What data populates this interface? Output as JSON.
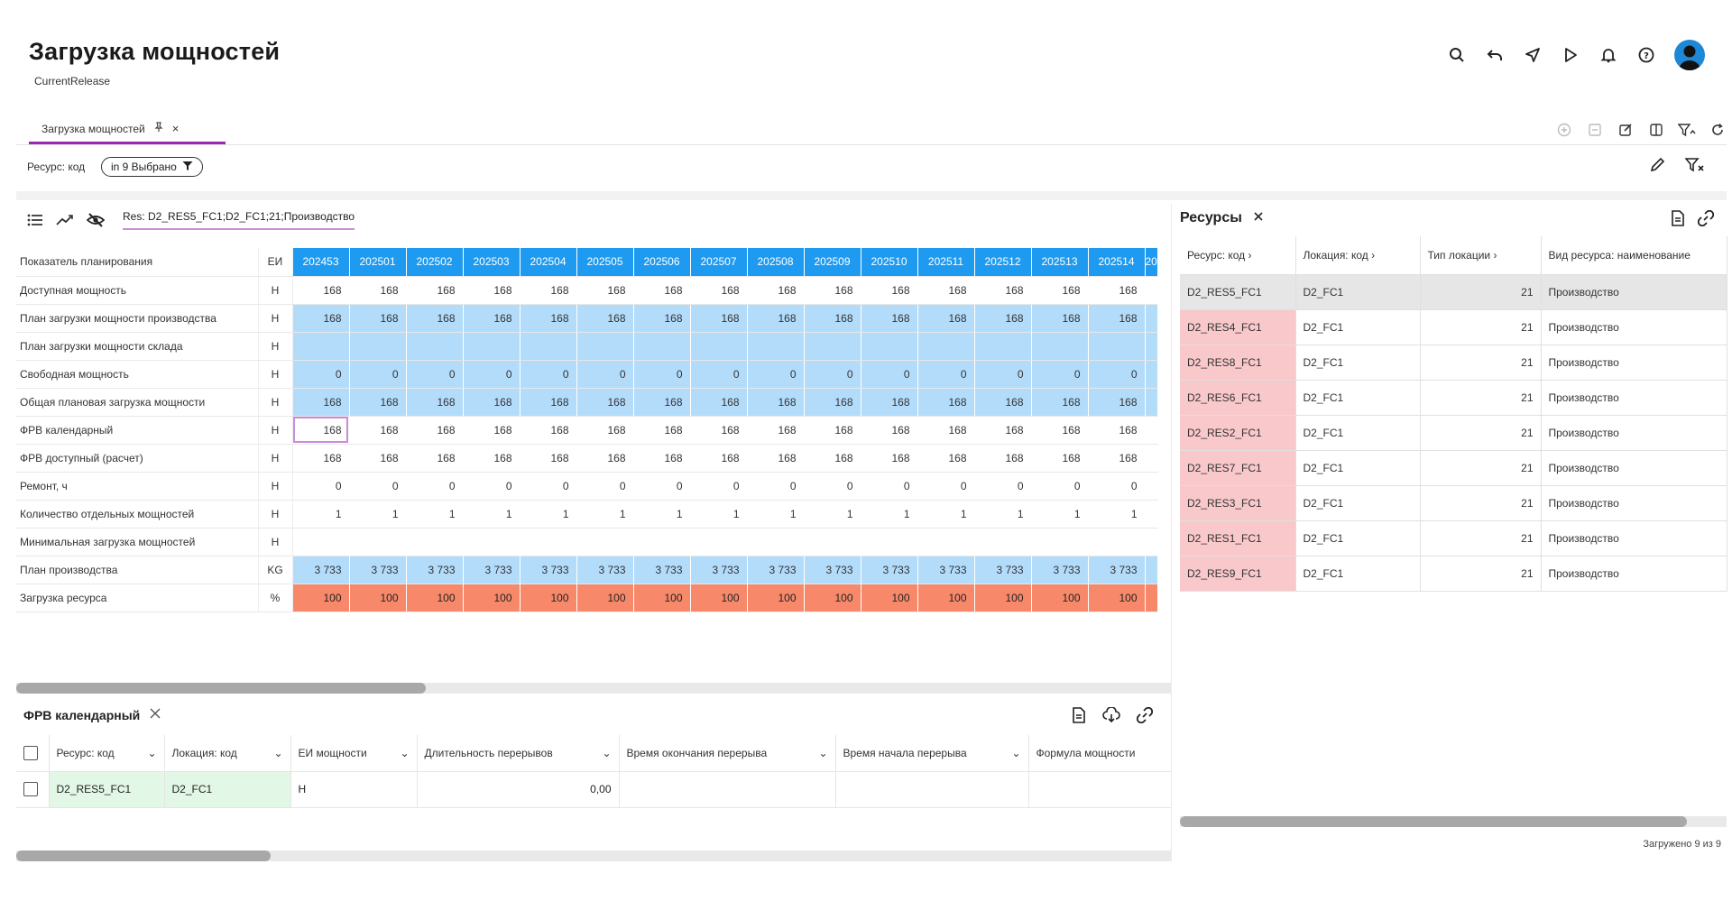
{
  "header": {
    "title": "Загрузка мощностей",
    "subtitle": "CurrentRelease"
  },
  "tab": {
    "label": "Загрузка мощностей",
    "close": "×"
  },
  "filter": {
    "label": "Ресурс: код",
    "chip": "in 9 Выбрано"
  },
  "pivot": {
    "resource_label": "Res: D2_RES5_FC1;D2_FC1;21;Производство",
    "header_label": "Показатель планирования",
    "unit_header": "ЕИ",
    "periods": [
      "202453",
      "202501",
      "202502",
      "202503",
      "202504",
      "202505",
      "202506",
      "202507",
      "202508",
      "202509",
      "202510",
      "202511",
      "202512",
      "202513",
      "202514"
    ],
    "partial_period": "20",
    "rows": [
      {
        "label": "Доступная мощность",
        "unit": "Н",
        "style": "white",
        "values": [
          "168",
          "168",
          "168",
          "168",
          "168",
          "168",
          "168",
          "168",
          "168",
          "168",
          "168",
          "168",
          "168",
          "168",
          "168"
        ]
      },
      {
        "label": "План загрузки мощности производства",
        "unit": "Н",
        "style": "blue",
        "values": [
          "168",
          "168",
          "168",
          "168",
          "168",
          "168",
          "168",
          "168",
          "168",
          "168",
          "168",
          "168",
          "168",
          "168",
          "168"
        ]
      },
      {
        "label": "План загрузки мощности склада",
        "unit": "Н",
        "style": "blue",
        "values": [
          "",
          "",
          "",
          "",
          "",
          "",
          "",
          "",
          "",
          "",
          "",
          "",
          "",
          "",
          ""
        ]
      },
      {
        "label": "Свободная мощность",
        "unit": "Н",
        "style": "blue",
        "values": [
          "0",
          "0",
          "0",
          "0",
          "0",
          "0",
          "0",
          "0",
          "0",
          "0",
          "0",
          "0",
          "0",
          "0",
          "0"
        ]
      },
      {
        "label": "Общая плановая загрузка мощности",
        "unit": "Н",
        "style": "blue",
        "values": [
          "168",
          "168",
          "168",
          "168",
          "168",
          "168",
          "168",
          "168",
          "168",
          "168",
          "168",
          "168",
          "168",
          "168",
          "168"
        ]
      },
      {
        "label": "ФРВ календарный",
        "unit": "Н",
        "style": "white",
        "values": [
          "168",
          "168",
          "168",
          "168",
          "168",
          "168",
          "168",
          "168",
          "168",
          "168",
          "168",
          "168",
          "168",
          "168",
          "168"
        ]
      },
      {
        "label": "ФРВ доступный (расчет)",
        "unit": "Н",
        "style": "white",
        "values": [
          "168",
          "168",
          "168",
          "168",
          "168",
          "168",
          "168",
          "168",
          "168",
          "168",
          "168",
          "168",
          "168",
          "168",
          "168"
        ]
      },
      {
        "label": "Ремонт, ч",
        "unit": "Н",
        "style": "white",
        "values": [
          "0",
          "0",
          "0",
          "0",
          "0",
          "0",
          "0",
          "0",
          "0",
          "0",
          "0",
          "0",
          "0",
          "0",
          "0"
        ]
      },
      {
        "label": "Количество отдельных мощностей",
        "unit": "Н",
        "style": "white",
        "values": [
          "1",
          "1",
          "1",
          "1",
          "1",
          "1",
          "1",
          "1",
          "1",
          "1",
          "1",
          "1",
          "1",
          "1",
          "1"
        ]
      },
      {
        "label": "Минимальная загрузка мощностей",
        "unit": "Н",
        "style": "white",
        "values": [
          "",
          "",
          "",
          "",
          "",
          "",
          "",
          "",
          "",
          "",
          "",
          "",
          "",
          "",
          ""
        ]
      },
      {
        "label": "План производства",
        "unit": "KG",
        "style": "blue",
        "values": [
          "3 733",
          "3 733",
          "3 733",
          "3 733",
          "3 733",
          "3 733",
          "3 733",
          "3 733",
          "3 733",
          "3 733",
          "3 733",
          "3 733",
          "3 733",
          "3 733",
          "3 733"
        ]
      },
      {
        "label": "Загрузка ресурса",
        "unit": "%",
        "style": "red",
        "values": [
          "100",
          "100",
          "100",
          "100",
          "100",
          "100",
          "100",
          "100",
          "100",
          "100",
          "100",
          "100",
          "100",
          "100",
          "100"
        ]
      }
    ]
  },
  "bottom_panel": {
    "title": "ФРВ календарный",
    "columns": [
      "Ресурс: код",
      "Локация: код",
      "ЕИ мощности",
      "Длительность перерывов",
      "Время окончания перерыва",
      "Время начала перерыва",
      "Формула мощности"
    ],
    "row": [
      "D2_RES5_FC1",
      "D2_FC1",
      "Н",
      "0,00",
      "",
      "",
      ""
    ]
  },
  "right_panel": {
    "title": "Ресурсы",
    "columns": [
      "Ресурс: код",
      "Локация: код",
      "Тип локации",
      "Вид ресурса: наименование"
    ],
    "rows": [
      {
        "code": "D2_RES5_FC1",
        "loc": "D2_FC1",
        "type": "21",
        "kind": "Производство",
        "selected": true
      },
      {
        "code": "D2_RES4_FC1",
        "loc": "D2_FC1",
        "type": "21",
        "kind": "Производство"
      },
      {
        "code": "D2_RES8_FC1",
        "loc": "D2_FC1",
        "type": "21",
        "kind": "Производство"
      },
      {
        "code": "D2_RES6_FC1",
        "loc": "D2_FC1",
        "type": "21",
        "kind": "Производство"
      },
      {
        "code": "D2_RES2_FC1",
        "loc": "D2_FC1",
        "type": "21",
        "kind": "Производство"
      },
      {
        "code": "D2_RES7_FC1",
        "loc": "D2_FC1",
        "type": "21",
        "kind": "Производство"
      },
      {
        "code": "D2_RES3_FC1",
        "loc": "D2_FC1",
        "type": "21",
        "kind": "Производство"
      },
      {
        "code": "D2_RES1_FC1",
        "loc": "D2_FC1",
        "type": "21",
        "kind": "Производство"
      },
      {
        "code": "D2_RES9_FC1",
        "loc": "D2_FC1",
        "type": "21",
        "kind": "Производство"
      }
    ],
    "footer": "Загружено 9 из 9"
  },
  "colors": {
    "accent": "#9c27b0",
    "header_blue": "#1e9bf0",
    "cell_blue": "#b3dcfb",
    "cell_red": "#f7896a",
    "row_pink": "#f8c8cb",
    "cell_green": "#e3f7e6"
  },
  "icons": [
    "search-icon",
    "undo-icon",
    "send-icon",
    "play-icon",
    "bell-icon",
    "help-icon",
    "avatar"
  ]
}
